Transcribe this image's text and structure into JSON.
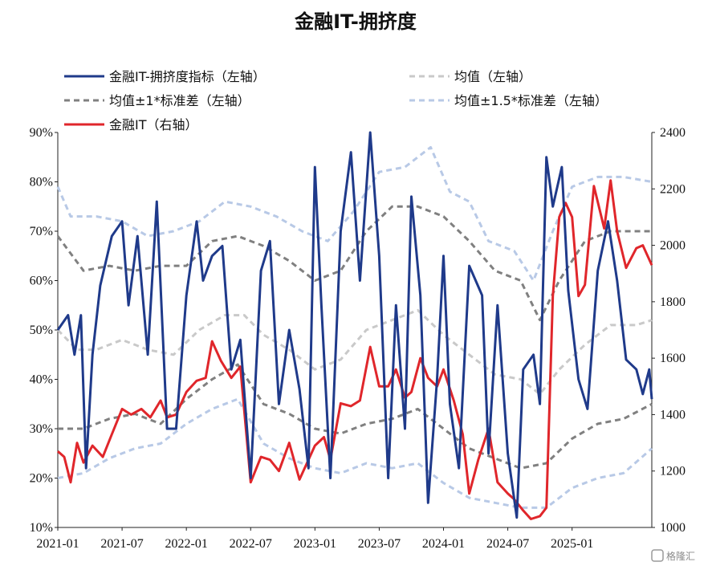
{
  "watermark": "格隆汇",
  "chart_data": {
    "type": "line",
    "title": "金融IT-拥挤度",
    "x_labels": [
      "2021-01",
      "2021-07",
      "2022-01",
      "2022-07",
      "2023-01",
      "2023-07",
      "2024-01",
      "2024-07",
      "2025-01"
    ],
    "y_left": {
      "min": 10,
      "max": 90,
      "ticks": [
        "10%",
        "20%",
        "30%",
        "40%",
        "50%",
        "60%",
        "70%",
        "80%",
        "90%"
      ]
    },
    "y_right": {
      "min": 1000,
      "max": 2400,
      "ticks": [
        "1000",
        "1200",
        "1400",
        "1600",
        "1800",
        "2000",
        "2200",
        "2400"
      ]
    },
    "legend": [
      {
        "label": "金融IT-拥挤度指标（左轴）",
        "color": "#1f3a8a",
        "style": "solid"
      },
      {
        "label": "均值（左轴）",
        "color": "#c9c9c9",
        "style": "dashed"
      },
      {
        "label": "均值±1*标准差（左轴）",
        "color": "#808080",
        "style": "dashed"
      },
      {
        "label": "均值±1.5*标准差（左轴）",
        "color": "#b8c9e6",
        "style": "dashed"
      },
      {
        "label": "金融IT（右轴）",
        "color": "#e0262b",
        "style": "solid"
      }
    ],
    "series": [
      {
        "name": "金融IT-拥挤度指标（左轴）",
        "axis": "left",
        "color": "#1f3a8a",
        "values": [
          [
            2021.0,
            50
          ],
          [
            2021.08,
            53
          ],
          [
            2021.13,
            45
          ],
          [
            2021.18,
            53
          ],
          [
            2021.22,
            22
          ],
          [
            2021.27,
            45
          ],
          [
            2021.33,
            59
          ],
          [
            2021.42,
            69
          ],
          [
            2021.5,
            72
          ],
          [
            2021.55,
            55
          ],
          [
            2021.62,
            69
          ],
          [
            2021.7,
            45
          ],
          [
            2021.77,
            76
          ],
          [
            2021.85,
            30
          ],
          [
            2021.92,
            30
          ],
          [
            2022.0,
            57
          ],
          [
            2022.08,
            72
          ],
          [
            2022.13,
            60
          ],
          [
            2022.2,
            65
          ],
          [
            2022.28,
            67
          ],
          [
            2022.35,
            42
          ],
          [
            2022.42,
            48
          ],
          [
            2022.5,
            20
          ],
          [
            2022.58,
            62
          ],
          [
            2022.65,
            68
          ],
          [
            2022.72,
            35
          ],
          [
            2022.8,
            50
          ],
          [
            2022.88,
            38
          ],
          [
            2022.95,
            22
          ],
          [
            2023.0,
            83
          ],
          [
            2023.05,
            55
          ],
          [
            2023.12,
            20
          ],
          [
            2023.2,
            70
          ],
          [
            2023.28,
            86
          ],
          [
            2023.35,
            60
          ],
          [
            2023.43,
            90
          ],
          [
            2023.5,
            65
          ],
          [
            2023.57,
            20
          ],
          [
            2023.63,
            55
          ],
          [
            2023.7,
            30
          ],
          [
            2023.75,
            77
          ],
          [
            2023.82,
            57
          ],
          [
            2023.88,
            15
          ],
          [
            2023.95,
            40
          ],
          [
            2024.0,
            65
          ],
          [
            2024.05,
            35
          ],
          [
            2024.12,
            22
          ],
          [
            2024.2,
            63
          ],
          [
            2024.3,
            57
          ],
          [
            2024.35,
            25
          ],
          [
            2024.42,
            55
          ],
          [
            2024.5,
            25
          ],
          [
            2024.57,
            12
          ],
          [
            2024.62,
            42
          ],
          [
            2024.7,
            45
          ],
          [
            2024.75,
            35
          ],
          [
            2024.8,
            85
          ],
          [
            2024.85,
            75
          ],
          [
            2024.92,
            83
          ],
          [
            2024.97,
            58
          ],
          [
            2025.05,
            40
          ],
          [
            2025.12,
            34
          ],
          [
            2025.2,
            62
          ],
          [
            2025.28,
            72
          ],
          [
            2025.35,
            60
          ],
          [
            2025.42,
            44
          ],
          [
            2025.5,
            42
          ],
          [
            2025.55,
            37
          ],
          [
            2025.6,
            42
          ],
          [
            2025.62,
            36
          ]
        ]
      },
      {
        "name": "均值（左轴）",
        "axis": "left",
        "color": "#c9c9c9",
        "dash": "7 5",
        "values": [
          [
            2021.0,
            50
          ],
          [
            2021.15,
            46
          ],
          [
            2021.3,
            46
          ],
          [
            2021.5,
            48
          ],
          [
            2021.7,
            46
          ],
          [
            2021.9,
            45
          ],
          [
            2022.1,
            50
          ],
          [
            2022.3,
            53
          ],
          [
            2022.45,
            53
          ],
          [
            2022.6,
            49
          ],
          [
            2022.8,
            46
          ],
          [
            2023.0,
            42
          ],
          [
            2023.2,
            44
          ],
          [
            2023.4,
            50
          ],
          [
            2023.6,
            52
          ],
          [
            2023.8,
            54
          ],
          [
            2024.0,
            49
          ],
          [
            2024.2,
            45
          ],
          [
            2024.4,
            41
          ],
          [
            2024.6,
            40
          ],
          [
            2024.75,
            37
          ],
          [
            2024.9,
            42
          ],
          [
            2025.1,
            47
          ],
          [
            2025.3,
            51
          ],
          [
            2025.5,
            51
          ],
          [
            2025.62,
            52
          ]
        ]
      },
      {
        "name": "均值+1*标准差（左轴）",
        "axis": "left",
        "color": "#808080",
        "dash": "7 5",
        "values": [
          [
            2021.0,
            69
          ],
          [
            2021.2,
            62
          ],
          [
            2021.4,
            63
          ],
          [
            2021.6,
            62
          ],
          [
            2021.8,
            63
          ],
          [
            2022.0,
            63
          ],
          [
            2022.2,
            68
          ],
          [
            2022.4,
            69
          ],
          [
            2022.6,
            67
          ],
          [
            2022.8,
            64
          ],
          [
            2023.0,
            60
          ],
          [
            2023.2,
            62
          ],
          [
            2023.4,
            70
          ],
          [
            2023.6,
            75
          ],
          [
            2023.8,
            75
          ],
          [
            2024.0,
            73
          ],
          [
            2024.2,
            68
          ],
          [
            2024.4,
            62
          ],
          [
            2024.6,
            60
          ],
          [
            2024.75,
            52
          ],
          [
            2024.9,
            60
          ],
          [
            2025.1,
            68
          ],
          [
            2025.3,
            70
          ],
          [
            2025.5,
            70
          ],
          [
            2025.62,
            70
          ]
        ]
      },
      {
        "name": "均值-1*标准差（左轴）",
        "axis": "left",
        "color": "#808080",
        "dash": "7 5",
        "values": [
          [
            2021.0,
            30
          ],
          [
            2021.2,
            30
          ],
          [
            2021.4,
            32
          ],
          [
            2021.6,
            33
          ],
          [
            2021.8,
            31
          ],
          [
            2022.0,
            36
          ],
          [
            2022.2,
            40
          ],
          [
            2022.4,
            43
          ],
          [
            2022.6,
            35
          ],
          [
            2022.8,
            33
          ],
          [
            2023.0,
            30
          ],
          [
            2023.2,
            29
          ],
          [
            2023.4,
            31
          ],
          [
            2023.6,
            32
          ],
          [
            2023.8,
            34
          ],
          [
            2024.0,
            30
          ],
          [
            2024.2,
            26
          ],
          [
            2024.4,
            24
          ],
          [
            2024.6,
            22
          ],
          [
            2024.8,
            23
          ],
          [
            2025.0,
            28
          ],
          [
            2025.2,
            31
          ],
          [
            2025.4,
            32
          ],
          [
            2025.62,
            35
          ]
        ]
      },
      {
        "name": "均值+1.5*标准差（左轴）",
        "axis": "left",
        "color": "#b8c9e6",
        "dash": "7 5",
        "values": [
          [
            2021.0,
            79
          ],
          [
            2021.1,
            73
          ],
          [
            2021.3,
            73
          ],
          [
            2021.5,
            72
          ],
          [
            2021.7,
            69
          ],
          [
            2021.9,
            70
          ],
          [
            2022.1,
            72
          ],
          [
            2022.3,
            76
          ],
          [
            2022.5,
            75
          ],
          [
            2022.7,
            73
          ],
          [
            2022.9,
            70
          ],
          [
            2023.1,
            68
          ],
          [
            2023.3,
            74
          ],
          [
            2023.5,
            82
          ],
          [
            2023.7,
            83
          ],
          [
            2023.9,
            87
          ],
          [
            2024.05,
            78
          ],
          [
            2024.2,
            76
          ],
          [
            2024.35,
            68
          ],
          [
            2024.55,
            66
          ],
          [
            2024.7,
            60
          ],
          [
            2024.85,
            70
          ],
          [
            2025.0,
            79
          ],
          [
            2025.2,
            81
          ],
          [
            2025.4,
            81
          ],
          [
            2025.62,
            80
          ]
        ]
      },
      {
        "name": "均值-1.5*标准差（左轴）",
        "axis": "left",
        "color": "#b8c9e6",
        "dash": "7 5",
        "values": [
          [
            2021.0,
            20
          ],
          [
            2021.2,
            21
          ],
          [
            2021.4,
            24
          ],
          [
            2021.6,
            26
          ],
          [
            2021.8,
            27
          ],
          [
            2022.0,
            31
          ],
          [
            2022.2,
            34
          ],
          [
            2022.4,
            36
          ],
          [
            2022.6,
            27
          ],
          [
            2022.8,
            24
          ],
          [
            2023.0,
            22
          ],
          [
            2023.2,
            21
          ],
          [
            2023.4,
            23
          ],
          [
            2023.6,
            22
          ],
          [
            2023.8,
            23
          ],
          [
            2024.0,
            19
          ],
          [
            2024.2,
            16
          ],
          [
            2024.4,
            15
          ],
          [
            2024.6,
            14
          ],
          [
            2024.8,
            14
          ],
          [
            2025.0,
            18
          ],
          [
            2025.2,
            20
          ],
          [
            2025.4,
            21
          ],
          [
            2025.62,
            26
          ]
        ]
      },
      {
        "name": "金融IT（右轴）",
        "axis": "right",
        "color": "#e0262b",
        "values": [
          [
            2021.0,
            1270
          ],
          [
            2021.05,
            1250
          ],
          [
            2021.1,
            1160
          ],
          [
            2021.15,
            1300
          ],
          [
            2021.2,
            1230
          ],
          [
            2021.27,
            1290
          ],
          [
            2021.35,
            1250
          ],
          [
            2021.42,
            1330
          ],
          [
            2021.5,
            1420
          ],
          [
            2021.57,
            1400
          ],
          [
            2021.65,
            1420
          ],
          [
            2021.72,
            1390
          ],
          [
            2021.8,
            1450
          ],
          [
            2021.85,
            1390
          ],
          [
            2021.92,
            1400
          ],
          [
            2022.0,
            1480
          ],
          [
            2022.08,
            1520
          ],
          [
            2022.15,
            1530
          ],
          [
            2022.2,
            1660
          ],
          [
            2022.27,
            1590
          ],
          [
            2022.35,
            1530
          ],
          [
            2022.42,
            1570
          ],
          [
            2022.5,
            1160
          ],
          [
            2022.58,
            1250
          ],
          [
            2022.65,
            1240
          ],
          [
            2022.72,
            1200
          ],
          [
            2022.8,
            1300
          ],
          [
            2022.88,
            1170
          ],
          [
            2022.95,
            1240
          ],
          [
            2023.0,
            1290
          ],
          [
            2023.07,
            1320
          ],
          [
            2023.12,
            1240
          ],
          [
            2023.2,
            1440
          ],
          [
            2023.28,
            1430
          ],
          [
            2023.35,
            1450
          ],
          [
            2023.43,
            1640
          ],
          [
            2023.5,
            1500
          ],
          [
            2023.57,
            1500
          ],
          [
            2023.63,
            1560
          ],
          [
            2023.7,
            1460
          ],
          [
            2023.75,
            1480
          ],
          [
            2023.82,
            1600
          ],
          [
            2023.88,
            1530
          ],
          [
            2023.95,
            1500
          ],
          [
            2024.0,
            1560
          ],
          [
            2024.08,
            1450
          ],
          [
            2024.15,
            1330
          ],
          [
            2024.2,
            1120
          ],
          [
            2024.27,
            1240
          ],
          [
            2024.35,
            1350
          ],
          [
            2024.42,
            1160
          ],
          [
            2024.5,
            1120
          ],
          [
            2024.55,
            1100
          ],
          [
            2024.62,
            1060
          ],
          [
            2024.68,
            1030
          ],
          [
            2024.75,
            1040
          ],
          [
            2024.8,
            1070
          ],
          [
            2024.85,
            1820
          ],
          [
            2024.9,
            2100
          ],
          [
            2024.95,
            2150
          ],
          [
            2025.0,
            2100
          ],
          [
            2025.05,
            1820
          ],
          [
            2025.1,
            1860
          ],
          [
            2025.17,
            2210
          ],
          [
            2025.25,
            2060
          ],
          [
            2025.3,
            2230
          ],
          [
            2025.35,
            2050
          ],
          [
            2025.42,
            1920
          ],
          [
            2025.5,
            1990
          ],
          [
            2025.55,
            2000
          ],
          [
            2025.62,
            1930
          ]
        ]
      }
    ]
  }
}
